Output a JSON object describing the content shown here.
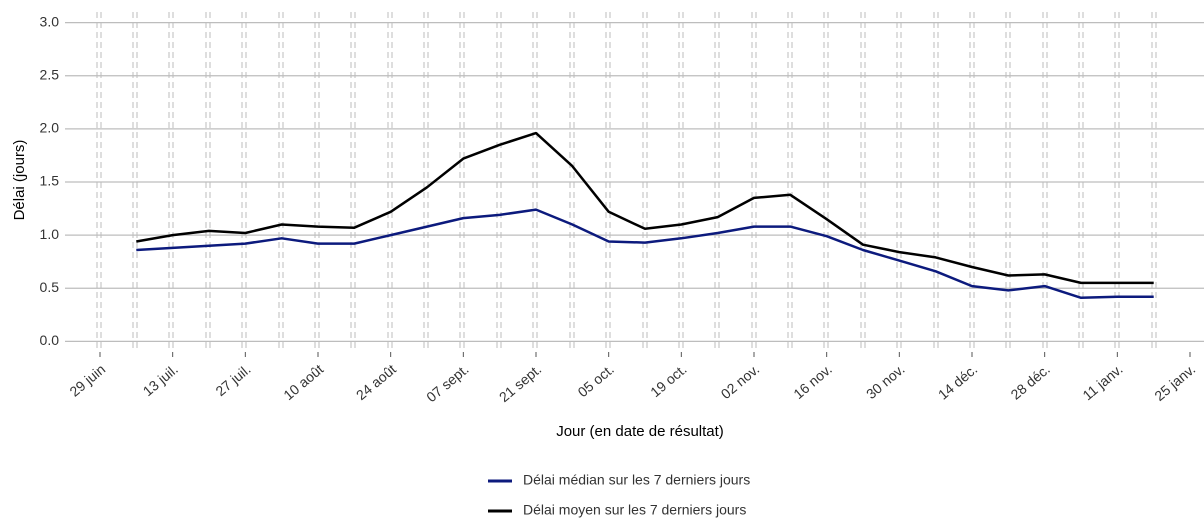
{
  "chart_data": {
    "type": "line",
    "x_label": "Jour (en date de résultat)",
    "y_label": "Délai (jours)",
    "x": [
      "29 juin",
      null,
      "13 juil.",
      null,
      "27 juil.",
      null,
      "10 août",
      null,
      "24 août",
      null,
      "07 sept.",
      null,
      "21 sept.",
      null,
      "05 oct.",
      null,
      "19 oct.",
      null,
      "02 nov.",
      null,
      "16 nov.",
      null,
      "30 nov.",
      null,
      "14 déc.",
      null,
      "28 déc.",
      null,
      "11 janv.",
      null,
      "25 janv."
    ],
    "series": [
      {
        "name": "Délai médian sur les 7 derniers jours",
        "color": "#0c1a7d",
        "values": [
          null,
          0.86,
          0.88,
          0.9,
          0.92,
          0.97,
          0.92,
          0.92,
          1.0,
          1.08,
          1.16,
          1.19,
          1.24,
          1.1,
          0.94,
          0.93,
          0.97,
          1.02,
          1.08,
          1.08,
          0.99,
          0.86,
          0.76,
          0.66,
          0.52,
          0.48,
          0.52,
          0.41,
          0.42,
          0.42,
          null
        ]
      },
      {
        "name": "Délai moyen sur les 7 derniers jours",
        "color": "#000000",
        "values": [
          null,
          0.94,
          1.0,
          1.04,
          1.02,
          1.1,
          1.08,
          1.07,
          1.22,
          1.45,
          1.72,
          1.85,
          1.96,
          1.65,
          1.22,
          1.06,
          1.1,
          1.17,
          1.35,
          1.38,
          1.15,
          0.91,
          0.84,
          0.79,
          0.7,
          0.62,
          0.63,
          0.55,
          0.55,
          0.55,
          null
        ]
      }
    ],
    "ylim": [
      -0.1,
      3.1
    ],
    "yticks": [
      {
        "value": 0,
        "label": "0.0"
      },
      0.5,
      {
        "value": 1,
        "label": "1.0"
      },
      1.5,
      {
        "value": 2,
        "label": "2.0"
      },
      2.5,
      {
        "value": 3,
        "label": "3.0"
      }
    ],
    "grid": true,
    "legend": "bottom"
  }
}
